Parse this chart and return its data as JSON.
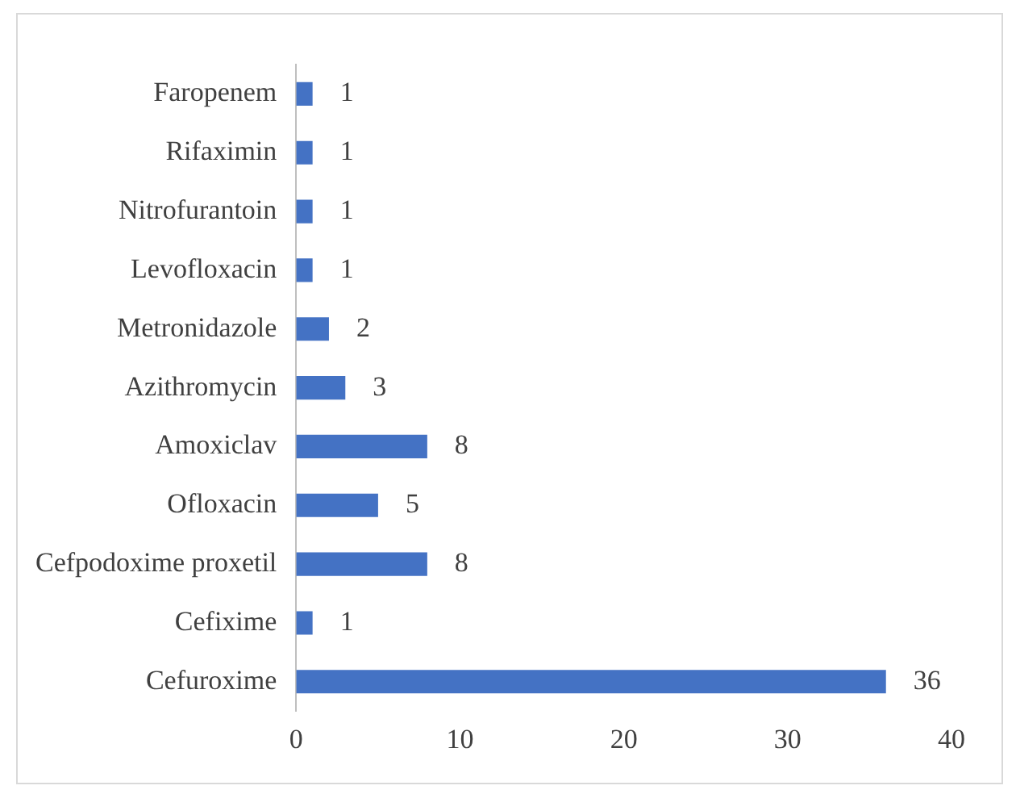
{
  "chart_data": {
    "type": "bar",
    "orientation": "horizontal",
    "categories": [
      "Faropenem",
      "Rifaximin",
      "Nitrofurantoin",
      "Levofloxacin",
      "Metronidazole",
      "Azithromycin",
      "Amoxiclav",
      "Ofloxacin",
      "Cefpodoxime proxetil",
      "Cefixime",
      "Cefuroxime"
    ],
    "values": [
      1,
      1,
      1,
      1,
      2,
      3,
      8,
      5,
      8,
      1,
      36
    ],
    "color": "#4472c4",
    "xlim": [
      0,
      40
    ],
    "xticks": [
      0,
      10,
      20,
      30,
      40
    ],
    "grid": false,
    "legend": false,
    "data_labels": true
  }
}
